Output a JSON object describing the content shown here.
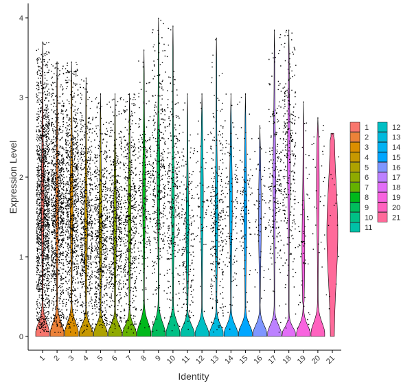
{
  "chart_data": {
    "type": "violin",
    "xlabel": "Identity",
    "ylabel": "Expression Level",
    "ylim": [
      -0.15,
      4.2
    ],
    "yticks": [
      0,
      1,
      2,
      3,
      4
    ],
    "grid": false,
    "legend_position": "right",
    "categories": [
      "1",
      "2",
      "3",
      "4",
      "5",
      "6",
      "7",
      "8",
      "9",
      "10",
      "11",
      "12",
      "13",
      "14",
      "15",
      "16",
      "17",
      "18",
      "19",
      "20",
      "21"
    ],
    "colors": [
      "#F8766D",
      "#EC8239",
      "#DB8E00",
      "#C79800",
      "#AEA200",
      "#8FAA00",
      "#64B200",
      "#00B81B",
      "#00BD5C",
      "#00C085",
      "#00C1A7",
      "#00BFC4",
      "#00BADE",
      "#00B2F3",
      "#00A6FF",
      "#7F96FF",
      "#BC81FF",
      "#E26EF7",
      "#F863DF",
      "#FF62BF",
      "#FF6A9A"
    ],
    "series": [
      {
        "name": "1",
        "max": 3.7,
        "mode": 0.25,
        "upper_median": 1.7,
        "dense_lo": 0.55,
        "dense_hi": 2.7,
        "points": 1400
      },
      {
        "name": "2",
        "max": 3.45,
        "mode": 0.25,
        "upper_median": 1.6,
        "dense_lo": 0.6,
        "dense_hi": 2.6,
        "points": 1000
      },
      {
        "name": "3",
        "max": 3.45,
        "mode": 0.25,
        "upper_median": 1.7,
        "dense_lo": 0.6,
        "dense_hi": 2.6,
        "points": 850
      },
      {
        "name": "4",
        "max": 3.25,
        "mode": 0.2,
        "upper_median": 1.4,
        "dense_lo": 0.5,
        "dense_hi": 2.3,
        "points": 650
      },
      {
        "name": "5",
        "max": 3.05,
        "mode": 0.2,
        "upper_median": 1.4,
        "dense_lo": 0.5,
        "dense_hi": 2.2,
        "points": 600
      },
      {
        "name": "6",
        "max": 3.05,
        "mode": 0.2,
        "upper_median": 1.4,
        "dense_lo": 0.5,
        "dense_hi": 2.2,
        "points": 550
      },
      {
        "name": "7",
        "max": 3.05,
        "mode": 0.2,
        "upper_median": 1.5,
        "dense_lo": 0.5,
        "dense_hi": 2.3,
        "points": 500
      },
      {
        "name": "8",
        "max": 3.6,
        "mode": 0.25,
        "upper_median": 1.8,
        "dense_lo": 1.0,
        "dense_hi": 2.6,
        "points": 250
      },
      {
        "name": "9",
        "max": 4.0,
        "mode": 0.25,
        "upper_median": 2.0,
        "dense_lo": 1.0,
        "dense_hi": 2.9,
        "points": 350
      },
      {
        "name": "10",
        "max": 3.9,
        "mode": 0.25,
        "upper_median": 1.6,
        "dense_lo": 0.8,
        "dense_hi": 2.5,
        "points": 300
      },
      {
        "name": "11",
        "max": 3.05,
        "mode": 0.2,
        "upper_median": 1.3,
        "dense_lo": 0.5,
        "dense_hi": 2.0,
        "points": 200
      },
      {
        "name": "12",
        "max": 3.05,
        "mode": 0.2,
        "upper_median": 1.8,
        "dense_lo": 1.3,
        "dense_hi": 2.3,
        "points": 60
      },
      {
        "name": "13",
        "max": 3.75,
        "mode": 0.2,
        "upper_median": 1.5,
        "dense_lo": 0.6,
        "dense_hi": 2.3,
        "points": 300
      },
      {
        "name": "14",
        "max": 3.05,
        "mode": 0.2,
        "upper_median": 1.7,
        "dense_lo": 1.0,
        "dense_hi": 2.4,
        "points": 120
      },
      {
        "name": "15",
        "max": 3.05,
        "mode": 0.2,
        "upper_median": 1.6,
        "dense_lo": 1.0,
        "dense_hi": 2.3,
        "points": 100
      },
      {
        "name": "16",
        "max": 2.65,
        "mode": 0.2,
        "upper_median": 1.5,
        "dense_lo": 1.0,
        "dense_hi": 2.2,
        "points": 60
      },
      {
        "name": "17",
        "max": 3.85,
        "mode": 0.2,
        "upper_median": 2.0,
        "dense_lo": 1.1,
        "dense_hi": 2.8,
        "points": 220
      },
      {
        "name": "18",
        "max": 3.85,
        "mode": 0.15,
        "upper_median": 2.2,
        "dense_lo": 1.3,
        "dense_hi": 3.3,
        "points": 280
      },
      {
        "name": "19",
        "max": 2.95,
        "mode": 0.2,
        "upper_median": 1.1,
        "dense_lo": 0.4,
        "dense_hi": 1.8,
        "points": 60
      },
      {
        "name": "20",
        "max": 2.75,
        "mode": 0.25,
        "upper_median": 1.9,
        "dense_lo": 1.2,
        "dense_hi": 2.4,
        "points": 30
      },
      {
        "name": "21",
        "max": 2.55,
        "mode": 1.2,
        "upper_median": 1.5,
        "dense_lo": 0.9,
        "dense_hi": 2.5,
        "points": 15
      }
    ]
  }
}
